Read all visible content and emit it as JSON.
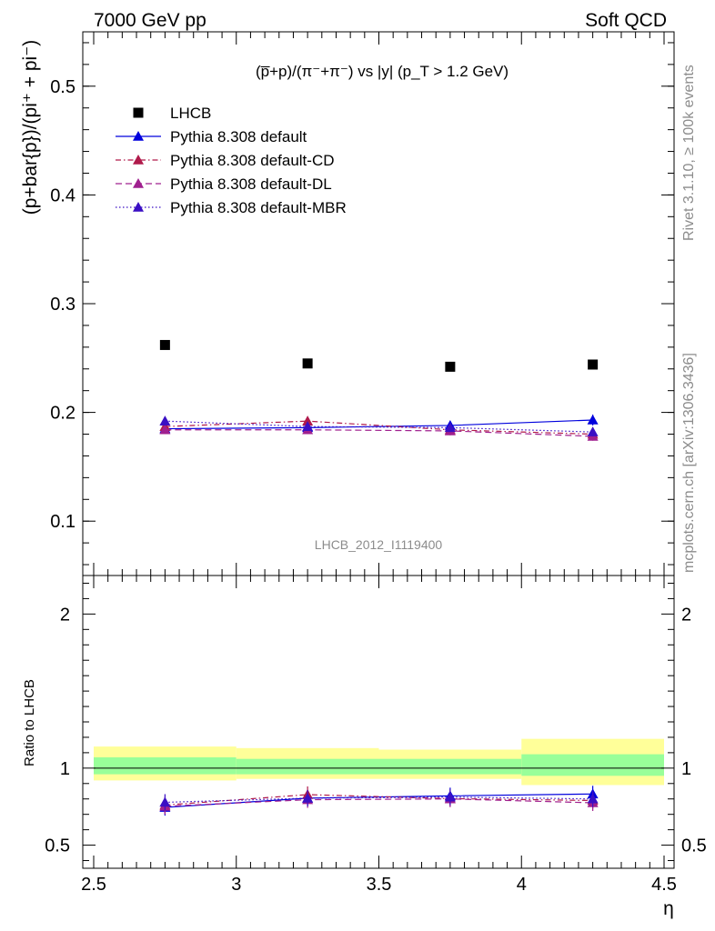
{
  "header": {
    "left": "7000 GeV pp",
    "right": "Soft QCD"
  },
  "side_text": {
    "rivet": "Rivet 3.1.10, ≥ 100k events",
    "mcplots": "mcplots.cern.ch [arXiv:1306.3436]"
  },
  "watermark": "LHCB_2012_I1119400",
  "colors": {
    "data": "#000000",
    "default": "#0000dd",
    "cd": "#b01a4b",
    "dl": "#a0208f",
    "mbr": "#3a0fc4",
    "band_inner": "#99ff99",
    "band_outer": "#ffff99"
  },
  "chart_data": [
    {
      "type": "scatter",
      "panel": "main",
      "title": "",
      "ylabel": "(p+bar{p})/(pi⁺ + pi⁻)",
      "xlabel": "",
      "xlim": [
        2.5,
        4.5
      ],
      "ylim": [
        0.05,
        0.55
      ],
      "yticks": [
        0.1,
        0.2,
        0.3,
        0.4,
        0.5
      ],
      "legend_position": "top-left",
      "annotation": "(p̅+p)/(π⁻+π⁻) vs |y| (p_T > 1.2 GeV)",
      "x": [
        2.75,
        3.25,
        3.75,
        4.25
      ],
      "series": [
        {
          "name": "LHCB",
          "marker": "square",
          "style": "none",
          "color": "#000000",
          "values": [
            0.262,
            0.245,
            0.242,
            0.244
          ]
        },
        {
          "name": "Pythia 8.308 default",
          "marker": "triangle",
          "style": "solid",
          "color": "#0000dd",
          "values": [
            0.185,
            0.186,
            0.188,
            0.193
          ],
          "errors": [
            0.004,
            0.004,
            0.004,
            0.005
          ]
        },
        {
          "name": "Pythia 8.308 default-CD",
          "marker": "triangle",
          "style": "dashdot",
          "color": "#b01a4b",
          "values": [
            0.187,
            0.192,
            0.184,
            0.18
          ],
          "errors": [
            0.004,
            0.004,
            0.004,
            0.004
          ]
        },
        {
          "name": "Pythia 8.308 default-DL",
          "marker": "triangle",
          "style": "dashed",
          "color": "#a0208f",
          "values": [
            0.184,
            0.184,
            0.183,
            0.178
          ],
          "errors": [
            0.004,
            0.004,
            0.004,
            0.004
          ]
        },
        {
          "name": "Pythia 8.308 default-MBR",
          "marker": "triangle",
          "style": "dotted",
          "color": "#3a0fc4",
          "values": [
            0.192,
            0.187,
            0.186,
            0.182
          ],
          "errors": [
            0.004,
            0.004,
            0.004,
            0.004
          ]
        }
      ]
    },
    {
      "type": "scatter",
      "panel": "ratio",
      "ylabel": "Ratio to LHCB",
      "xlabel": "η",
      "xlim": [
        2.5,
        4.5
      ],
      "ylim": [
        0.35,
        2.25
      ],
      "yticks": [
        0.5,
        1,
        2
      ],
      "xticks": [
        2.5,
        3,
        3.5,
        4,
        4.5
      ],
      "bands": [
        {
          "x0": 2.5,
          "x1": 3.0,
          "inner": [
            0.96,
            1.07
          ],
          "outer": [
            0.92,
            1.14
          ]
        },
        {
          "x0": 3.0,
          "x1": 3.5,
          "inner": [
            0.96,
            1.06
          ],
          "outer": [
            0.93,
            1.13
          ]
        },
        {
          "x0": 3.5,
          "x1": 4.0,
          "inner": [
            0.96,
            1.06
          ],
          "outer": [
            0.93,
            1.12
          ]
        },
        {
          "x0": 4.0,
          "x1": 4.5,
          "inner": [
            0.95,
            1.09
          ],
          "outer": [
            0.89,
            1.19
          ]
        }
      ],
      "x": [
        2.75,
        3.25,
        3.75,
        4.25
      ],
      "series": [
        {
          "name": "Pythia 8.308 default",
          "style": "solid",
          "color": "#0000dd",
          "values": [
            0.745,
            0.805,
            0.82,
            0.832
          ]
        },
        {
          "name": "Pythia 8.308 default-CD",
          "style": "dashdot",
          "color": "#b01a4b",
          "values": [
            0.76,
            0.828,
            0.802,
            0.79
          ]
        },
        {
          "name": "Pythia 8.308 default-DL",
          "style": "dashed",
          "color": "#a0208f",
          "values": [
            0.752,
            0.795,
            0.8,
            0.775
          ]
        },
        {
          "name": "Pythia 8.308 default-MBR",
          "style": "dotted",
          "color": "#3a0fc4",
          "values": [
            0.778,
            0.805,
            0.812,
            0.8
          ]
        }
      ]
    }
  ]
}
